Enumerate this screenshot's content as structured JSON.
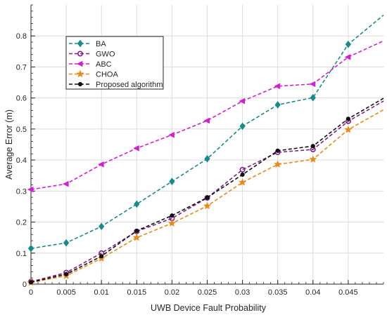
{
  "chart_data": {
    "type": "line",
    "xlabel": "UWB Device Fault Probability",
    "ylabel": "Average Error (m)",
    "xlim": [
      0,
      0.05
    ],
    "ylim": [
      0,
      0.9
    ],
    "x_ticks": [
      0,
      0.005,
      0.01,
      0.015,
      0.02,
      0.025,
      0.03,
      0.035,
      0.04,
      0.045
    ],
    "x_tick_labels": [
      "0",
      "0.005",
      "0.01",
      "0.015",
      "0.02",
      "0.025",
      "0.03",
      "0.035",
      "0.04",
      "0.045"
    ],
    "y_ticks": [
      0,
      0.1,
      0.2,
      0.3,
      0.4,
      0.5,
      0.6,
      0.7,
      0.8
    ],
    "y_tick_labels": [
      "0",
      "0.1",
      "0.2",
      "0.3",
      "0.4",
      "0.5",
      "0.6",
      "0.7",
      "0.8"
    ],
    "grid": true,
    "legend_position": "top-left",
    "x": [
      0,
      0.005,
      0.01,
      0.015,
      0.02,
      0.025,
      0.03,
      0.035,
      0.04,
      0.045,
      0.05
    ],
    "series": [
      {
        "name": "BA",
        "color": "#1a8a8a",
        "marker": "diamond",
        "values": [
          0.115,
          0.133,
          0.186,
          0.258,
          0.331,
          0.404,
          0.509,
          0.578,
          0.601,
          0.773,
          0.867
        ]
      },
      {
        "name": "GWO",
        "color": "#7e1f86",
        "marker": "circle",
        "values": [
          0.008,
          0.037,
          0.1,
          0.17,
          0.212,
          0.278,
          0.369,
          0.425,
          0.434,
          0.525,
          0.59
        ]
      },
      {
        "name": "ABC",
        "color": "#d21fd2",
        "marker": "triangle-left",
        "values": [
          0.305,
          0.323,
          0.386,
          0.438,
          0.481,
          0.527,
          0.59,
          0.638,
          0.645,
          0.732,
          0.784
        ]
      },
      {
        "name": "CHOA",
        "color": "#e88a1a",
        "marker": "star",
        "values": [
          0.005,
          0.027,
          0.083,
          0.15,
          0.196,
          0.252,
          0.328,
          0.386,
          0.402,
          0.498,
          0.562
        ]
      },
      {
        "name": "Proposed algorithm",
        "color": "#111111",
        "marker": "dot",
        "values": [
          0.006,
          0.032,
          0.09,
          0.172,
          0.221,
          0.279,
          0.353,
          0.43,
          0.445,
          0.533,
          0.599
        ]
      }
    ]
  }
}
